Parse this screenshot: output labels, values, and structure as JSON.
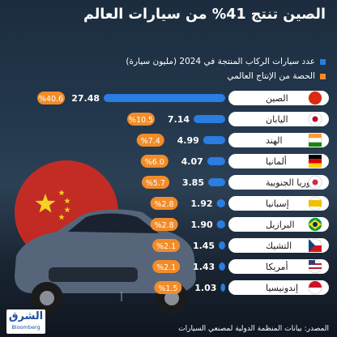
{
  "title": "الصين تنتج 41% من سيارات العالم",
  "legend": [
    {
      "label": "عدد سيارات الركاب المنتجة في 2024 (مليون سيارة)",
      "color": "#2a7de1"
    },
    {
      "label": "الحصة من الإنتاج العالمي",
      "color": "#f28c28"
    }
  ],
  "colors": {
    "bar": "#2a7de1",
    "share_pill": "#f28c28",
    "label_pill": "#ffffff"
  },
  "chart_data": {
    "type": "bar",
    "orientation": "horizontal",
    "categories": [
      "الصين",
      "اليابان",
      "الهند",
      "ألمانيا",
      "كوريا الجنوبية",
      "إسبانيا",
      "البرازيل",
      "التشيك",
      "أمريكا",
      "إندونيسيا"
    ],
    "flags": [
      "flag-china-icon",
      "flag-japan-icon",
      "flag-india-icon",
      "flag-germany-icon",
      "flag-south-korea-icon",
      "flag-spain-icon",
      "flag-brazil-icon",
      "flag-czech-icon",
      "flag-usa-icon",
      "flag-indonesia-icon"
    ],
    "series": [
      {
        "name": "عدد سيارات الركاب المنتجة في 2024 (مليون سيارة)",
        "values": [
          27.48,
          7.14,
          4.99,
          4.07,
          3.85,
          1.92,
          1.9,
          1.45,
          1.43,
          1.03
        ]
      },
      {
        "name": "الحصة من الإنتاج العالمي",
        "values": [
          "%40.6",
          "%10.5",
          "%7.4",
          "%6.0",
          "%5.7",
          "%2.8",
          "%2.8",
          "%2.1",
          "%2.1",
          "%1.5"
        ]
      }
    ],
    "value_labels": [
      "27.48",
      "7.14",
      "4.99",
      "4.07",
      "3.85",
      "1.92",
      "1.90",
      "1.45",
      "1.43",
      "1.03"
    ]
  },
  "footer": {
    "source": "المصدر: بيانات المنظمة الدولية لمصنعي السيارات",
    "logo_ar": "الشرق",
    "logo_en": "Bloomberg"
  }
}
